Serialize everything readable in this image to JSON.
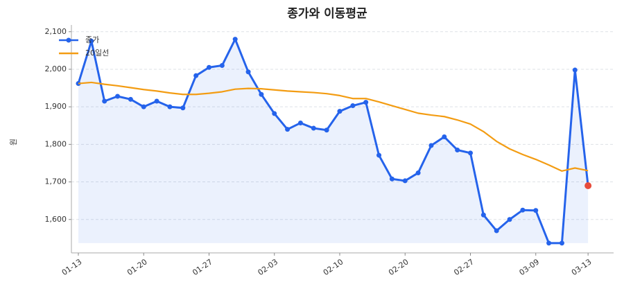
{
  "chart_data": {
    "type": "line",
    "title": "종가와 이동평균",
    "ylabel": "원",
    "categories": [
      "01-13",
      null,
      null,
      null,
      null,
      "01-20",
      null,
      null,
      null,
      null,
      "01-27",
      null,
      null,
      null,
      null,
      "02-03",
      null,
      null,
      null,
      null,
      "02-10",
      null,
      null,
      null,
      null,
      "02-20",
      null,
      null,
      null,
      null,
      "02-27",
      null,
      null,
      null,
      null,
      "03-09",
      null,
      null,
      null,
      "03-13"
    ],
    "series": [
      {
        "name": "종가",
        "color": "#2563eb",
        "markers": true,
        "fill": true,
        "last_point_color": "#e74c3c",
        "values": [
          1962,
          2075,
          1915,
          1928,
          1920,
          1900,
          1915,
          1900,
          1897,
          1983,
          2005,
          2010,
          2080,
          1993,
          1933,
          1882,
          1840,
          1857,
          1843,
          1838,
          1888,
          1903,
          1912,
          1771,
          1708,
          1703,
          1724,
          1797,
          1820,
          1785,
          1777,
          1612,
          1570,
          1600,
          1625,
          1624,
          1537,
          1537,
          1998,
          1690
        ]
      },
      {
        "name": "20일선",
        "color": "#f39c12",
        "markers": false,
        "fill": false,
        "values": [
          1962,
          1965,
          1960,
          1956,
          1951,
          1946,
          1942,
          1937,
          1933,
          1933,
          1936,
          1940,
          1947,
          1949,
          1948,
          1945,
          1942,
          1940,
          1938,
          1935,
          1930,
          1922,
          1922,
          1913,
          1903,
          1893,
          1883,
          1878,
          1874,
          1865,
          1854,
          1834,
          1808,
          1788,
          1773,
          1760,
          1745,
          1729,
          1737,
          1730
        ]
      }
    ],
    "ylim": [
      1511,
      2118
    ],
    "yticks": [
      {
        "value": 1600,
        "label": "1,600"
      },
      {
        "value": 1700,
        "label": "1,700"
      },
      {
        "value": 1800,
        "label": "1,800"
      },
      {
        "value": 1900,
        "label": "1,900"
      },
      {
        "value": 2000,
        "label": "2,000"
      },
      {
        "value": 2100,
        "label": "2,100"
      }
    ],
    "grid": true,
    "legend": "upper-left"
  }
}
